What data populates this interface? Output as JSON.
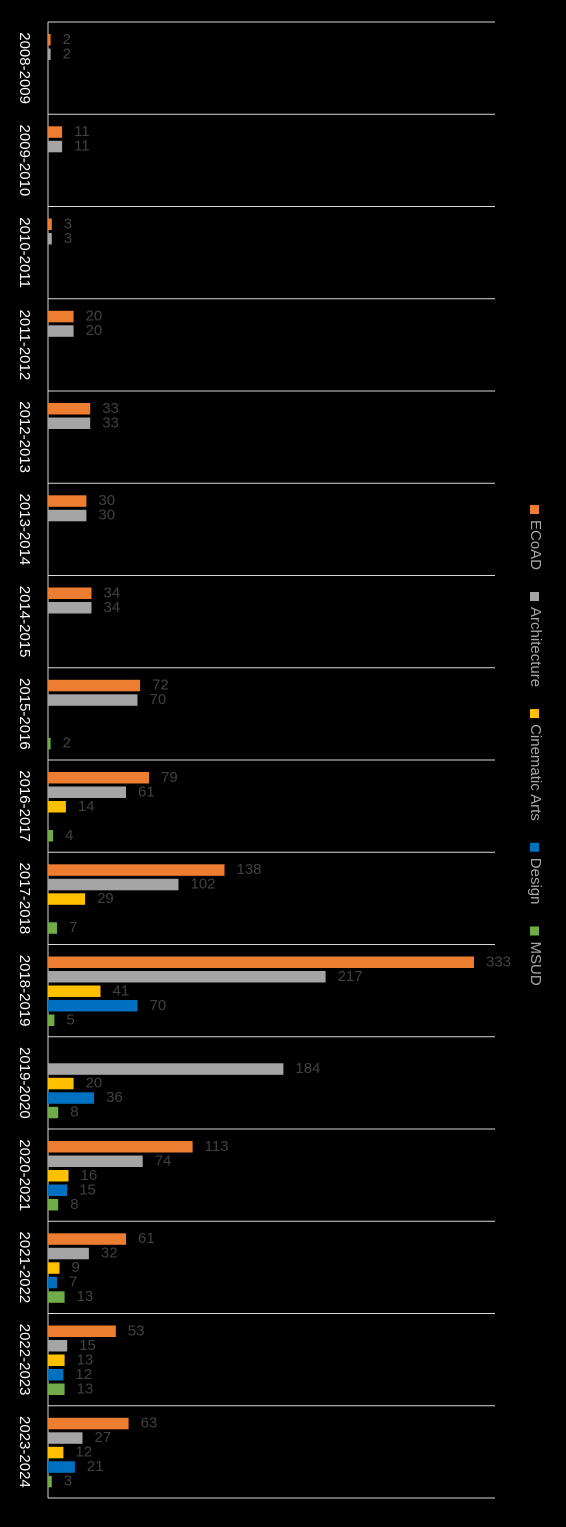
{
  "chart_data": {
    "type": "bar",
    "orientation": "horizontal",
    "categories": [
      "2008-2009",
      "2009-2010",
      "2010-2011",
      "2011-2012",
      "2012-2013",
      "2013-2014",
      "2014-2015",
      "2015-2016",
      "2016-2017",
      "2017-2018",
      "2018-2019",
      "2019-2020",
      "2020-2021",
      "2021-2022",
      "2022-2023",
      "2023-2024"
    ],
    "series": [
      {
        "name": "ECoAD",
        "color": "#ED7D31",
        "values": [
          2,
          11,
          3,
          20,
          33,
          30,
          34,
          72,
          79,
          138,
          333,
          null,
          113,
          61,
          53,
          63
        ]
      },
      {
        "name": "Architecture",
        "color": "#A5A5A5",
        "values": [
          2,
          11,
          3,
          20,
          33,
          30,
          34,
          70,
          61,
          102,
          217,
          184,
          74,
          32,
          15,
          27
        ]
      },
      {
        "name": "Cinematic Arts",
        "color": "#FFC000",
        "values": [
          null,
          null,
          null,
          null,
          null,
          null,
          null,
          null,
          14,
          29,
          41,
          20,
          16,
          9,
          13,
          12
        ]
      },
      {
        "name": "Design",
        "color": "#0070C0",
        "values": [
          null,
          null,
          null,
          null,
          null,
          null,
          null,
          null,
          null,
          null,
          70,
          36,
          15,
          7,
          12,
          21
        ]
      },
      {
        "name": "MSUD",
        "color": "#70AD47",
        "values": [
          null,
          null,
          null,
          null,
          null,
          null,
          null,
          2,
          4,
          7,
          5,
          8,
          8,
          13,
          13,
          3
        ]
      }
    ],
    "xlim": [
      0,
      350
    ],
    "grid": false,
    "legend_position": "right",
    "data_labels": true,
    "title": "",
    "xlabel": "",
    "ylabel": ""
  }
}
